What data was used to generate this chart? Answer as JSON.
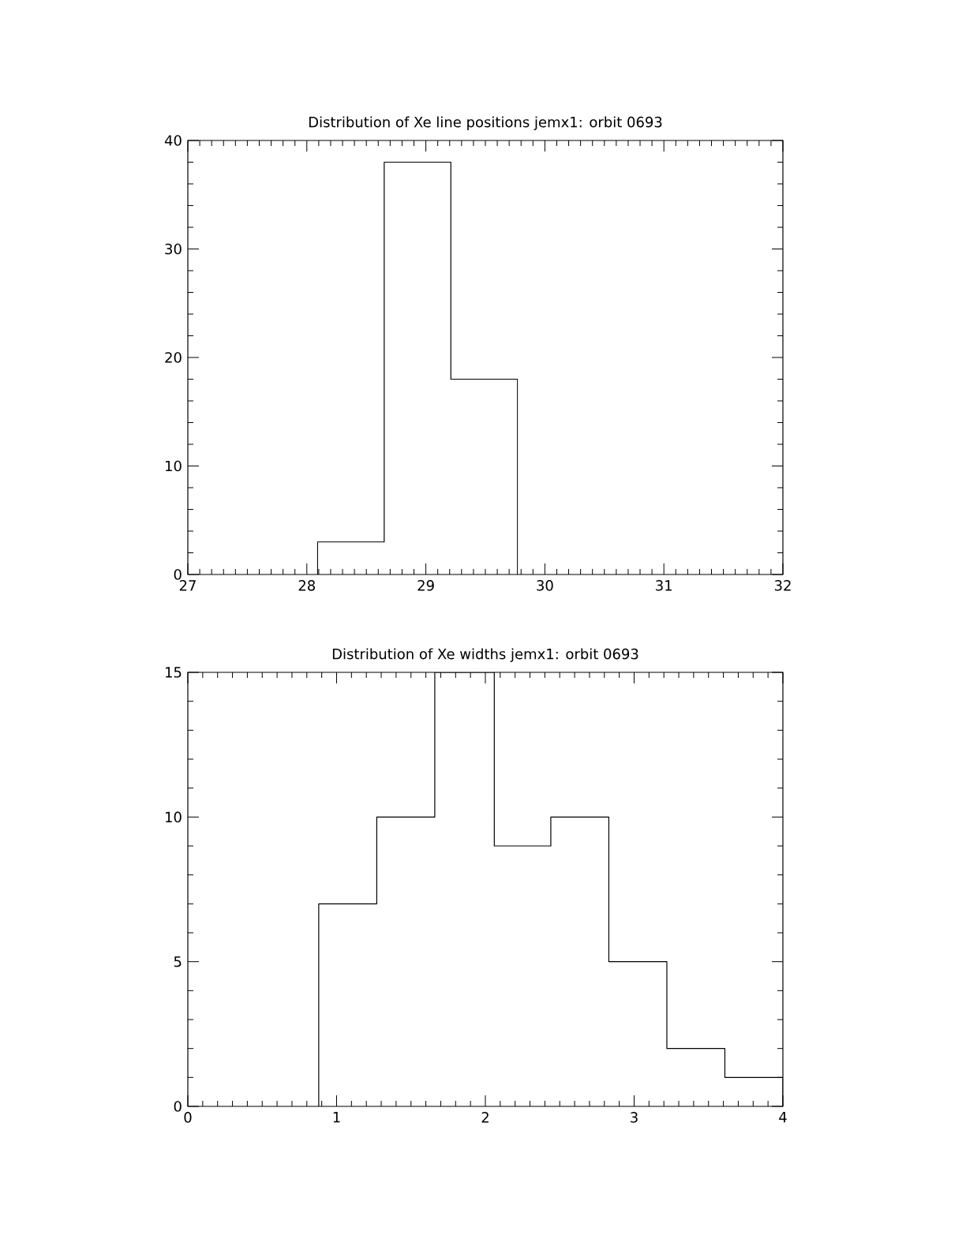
{
  "chart_data": [
    {
      "type": "histogram",
      "title": "Distribution of Xe line positions jemx1: orbit 0693",
      "bins": [
        28.09,
        28.65,
        29.21,
        29.77
      ],
      "values": [
        3,
        38,
        18
      ],
      "color": "#000000",
      "xlim": [
        27,
        32
      ],
      "xticks": [
        27,
        28,
        29,
        30,
        31,
        32
      ],
      "ylim": [
        0,
        40
      ],
      "yticks": [
        0,
        10,
        20,
        30,
        40
      ],
      "grid": false
    },
    {
      "type": "histogram",
      "title": "Distribution of Xe widths jemx1: orbit 0693",
      "bins": [
        0.88,
        1.27,
        1.66,
        2.06,
        2.44,
        2.83,
        3.22,
        3.61,
        4.0
      ],
      "values": [
        7,
        10,
        15,
        9,
        10,
        5,
        2,
        1
      ],
      "color": "#000000",
      "xlim": [
        0,
        4
      ],
      "xticks": [
        0,
        1,
        2,
        3,
        4
      ],
      "ylim": [
        0,
        15
      ],
      "yticks": [
        0,
        5,
        10,
        15
      ],
      "grid": false
    }
  ]
}
